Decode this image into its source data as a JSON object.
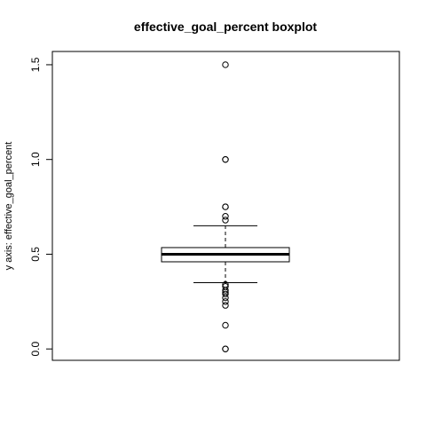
{
  "chart_data": {
    "type": "boxplot",
    "title": "effective_goal_percent boxplot",
    "xlabel": "",
    "ylabel": "y axis: effective_goal_percent",
    "ylim": [
      -0.06,
      1.57
    ],
    "y_ticks": [
      0.0,
      0.5,
      1.0,
      1.5
    ],
    "y_tick_labels": [
      "0.0",
      "0.5",
      "1.0",
      "1.5"
    ],
    "grid": false,
    "box": {
      "min_whisker": 0.35,
      "q1": 0.46,
      "median": 0.5,
      "q3": 0.535,
      "max_whisker": 0.65
    },
    "outliers": [
      1.5,
      1.0,
      1.0,
      0.75,
      0.75,
      0.7,
      0.68,
      0.34,
      0.33,
      0.31,
      0.3,
      0.29,
      0.27,
      0.25,
      0.23,
      0.125,
      0.0,
      0.0
    ]
  }
}
